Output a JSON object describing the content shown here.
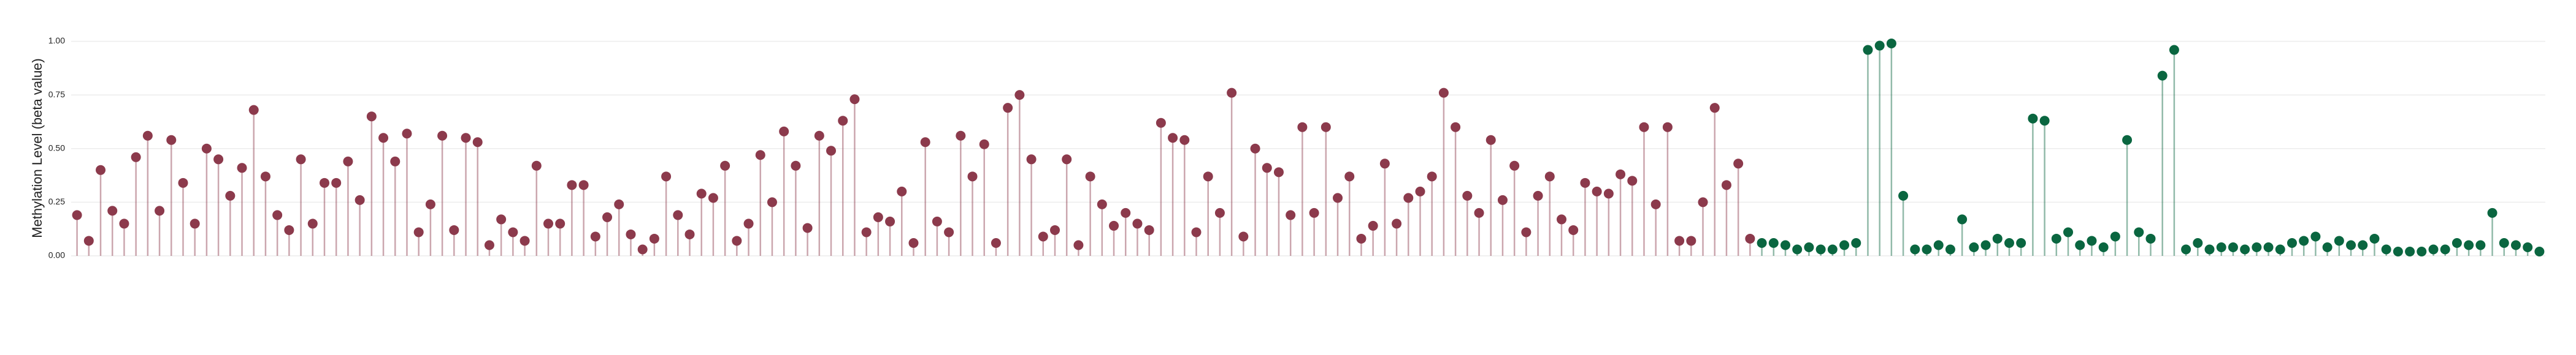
{
  "chart_data": {
    "type": "lollipop",
    "y_label": "Methylation Level (beta value)",
    "ylim": [
      0,
      1.05
    ],
    "yticks": [
      {
        "value": 0,
        "label": "0.00"
      },
      {
        "value": 0.25,
        "label": "0.25"
      },
      {
        "value": 0.5,
        "label": "0.50"
      },
      {
        "value": 0.75,
        "label": "0.75"
      },
      {
        "value": 1,
        "label": "1.00"
      }
    ],
    "grid": true,
    "categories": [
      null,
      null,
      null,
      null,
      null,
      null,
      null,
      null,
      null,
      null,
      null,
      null,
      null,
      null,
      null,
      null,
      null,
      null,
      null,
      null,
      null,
      null,
      null,
      null,
      null,
      null,
      null,
      null,
      null,
      null,
      null,
      null,
      null,
      null,
      null,
      null,
      null,
      null,
      null,
      null,
      null,
      null,
      null,
      null,
      null,
      null,
      null,
      null,
      null,
      null,
      null,
      null,
      null,
      null,
      null,
      null,
      null,
      null,
      null,
      null,
      null,
      null,
      null,
      null,
      null,
      null,
      null,
      null,
      null,
      null,
      null,
      null,
      null,
      null,
      null,
      null,
      null,
      null,
      null,
      null,
      null,
      null,
      null,
      null,
      null,
      null,
      null,
      null,
      null,
      null,
      null,
      null,
      null,
      null,
      null,
      null,
      null,
      null,
      null,
      null,
      null,
      null,
      null,
      null,
      null,
      null,
      null,
      null,
      null,
      null,
      null,
      null,
      null,
      null,
      null,
      null,
      null,
      null,
      null,
      null,
      null,
      null,
      null,
      null,
      null,
      null,
      null,
      null,
      null,
      null,
      null,
      null,
      null,
      null,
      null,
      null,
      null,
      null,
      null,
      null,
      null,
      null,
      null,
      null,
      null,
      null,
      null,
      null,
      null,
      null,
      null,
      null,
      null,
      null,
      null,
      null,
      null,
      null,
      null,
      null,
      null,
      null,
      null,
      null,
      null,
      null,
      null,
      null,
      null,
      null,
      null,
      null,
      null,
      null,
      null,
      null,
      null,
      null,
      null,
      null,
      null,
      null,
      null,
      null,
      null,
      null,
      null,
      null,
      null,
      null,
      null,
      null,
      null,
      null,
      null,
      null,
      null,
      null,
      null,
      null,
      null,
      null,
      null,
      null,
      null,
      null,
      null,
      null,
      null,
      null
    ],
    "series": [
      {
        "color": "#8c3a4c",
        "values": [
          0.19,
          0.07,
          0.4,
          0.21,
          0.15,
          0.46,
          0.56,
          0.21,
          0.54,
          0.34,
          0.15,
          0.5,
          0.45,
          0.28,
          0.41,
          0.68,
          0.37,
          0.19,
          0.12,
          0.45,
          0.15,
          0.34,
          0.34,
          0.44,
          0.26,
          0.65,
          0.55,
          0.44,
          0.57,
          0.11,
          0.24,
          0.56,
          0.12,
          0.55,
          0.53,
          0.05,
          0.17,
          0.11,
          0.07,
          0.42,
          0.15,
          0.15,
          0.33,
          0.33,
          0.09,
          0.18,
          0.24,
          0.1,
          0.03,
          0.08,
          0.37,
          0.19,
          0.1,
          0.29,
          0.27,
          0.42,
          0.07,
          0.15,
          0.47,
          0.25,
          0.58,
          0.42,
          0.13,
          0.56,
          0.49,
          0.63,
          0.73,
          0.11,
          0.18,
          0.16,
          0.3,
          0.06,
          0.53,
          0.16,
          0.11,
          0.56,
          0.37,
          0.52,
          0.06,
          0.69,
          0.75,
          0.45,
          0.09,
          0.12,
          0.45,
          0.05,
          0.37,
          0.24,
          0.14,
          0.2,
          0.15,
          0.12,
          0.62,
          0.55,
          0.54,
          0.11,
          0.37,
          0.2,
          0.76,
          0.09,
          0.5,
          0.41,
          0.39,
          0.19,
          0.6,
          0.2,
          0.6,
          0.27,
          0.37,
          0.08,
          0.14,
          0.43,
          0.15,
          0.27,
          0.3,
          0.37,
          0.76,
          0.6,
          0.28,
          0.2,
          0.54,
          0.26,
          0.42,
          0.11,
          0.28,
          0.37,
          0.17,
          0.12,
          0.34,
          0.3,
          0.29,
          0.38,
          0.35,
          0.6,
          0.24,
          0.6,
          0.07,
          0.07,
          0.25,
          0.69,
          0.33,
          0.43,
          0.08,
          null,
          null,
          null,
          null,
          null,
          null,
          null,
          null,
          null,
          null,
          null,
          null,
          null,
          null,
          null,
          null,
          null,
          null,
          null,
          null,
          null,
          null,
          null,
          null,
          null,
          null,
          null,
          null,
          null,
          null,
          null,
          null,
          null,
          null,
          null,
          null,
          null,
          null,
          null,
          null,
          null,
          null,
          null,
          null,
          null,
          null,
          null,
          null,
          null,
          null,
          null,
          null,
          null,
          null,
          null,
          null,
          null,
          null,
          null,
          null,
          null,
          null,
          null,
          null,
          null,
          null,
          null
        ]
      },
      {
        "color": "#0a6640",
        "values": [
          null,
          null,
          null,
          null,
          null,
          null,
          null,
          null,
          null,
          null,
          null,
          null,
          null,
          null,
          null,
          null,
          null,
          null,
          null,
          null,
          null,
          null,
          null,
          null,
          null,
          null,
          null,
          null,
          null,
          null,
          null,
          null,
          null,
          null,
          null,
          null,
          null,
          null,
          null,
          null,
          null,
          null,
          null,
          null,
          null,
          null,
          null,
          null,
          null,
          null,
          null,
          null,
          null,
          null,
          null,
          null,
          null,
          null,
          null,
          null,
          null,
          null,
          null,
          null,
          null,
          null,
          null,
          null,
          null,
          null,
          null,
          null,
          null,
          null,
          null,
          null,
          null,
          null,
          null,
          null,
          null,
          null,
          null,
          null,
          null,
          null,
          null,
          null,
          null,
          null,
          null,
          null,
          null,
          null,
          null,
          null,
          null,
          null,
          null,
          null,
          null,
          null,
          null,
          null,
          null,
          null,
          null,
          null,
          null,
          null,
          null,
          null,
          null,
          null,
          null,
          null,
          null,
          null,
          null,
          null,
          null,
          null,
          null,
          null,
          null,
          null,
          null,
          null,
          null,
          null,
          null,
          null,
          null,
          null,
          null,
          null,
          null,
          null,
          null,
          null,
          null,
          null,
          null,
          0.06,
          0.06,
          0.05,
          0.03,
          0.04,
          0.03,
          0.03,
          0.05,
          0.06,
          0.96,
          0.98,
          0.99,
          0.28,
          0.03,
          0.03,
          0.05,
          0.03,
          0.17,
          0.04,
          0.05,
          0.08,
          0.06,
          0.06,
          0.64,
          0.63,
          0.08,
          0.11,
          0.05,
          0.07,
          0.04,
          0.09,
          0.54,
          0.11,
          0.08,
          0.84,
          0.96,
          0.03,
          0.06,
          0.03,
          0.04,
          0.04,
          0.03,
          0.04,
          0.04,
          0.03,
          0.06,
          0.07,
          0.09,
          0.04,
          0.07,
          0.05,
          0.05,
          0.08,
          0.03,
          0.02,
          0.02,
          0.02,
          0.03,
          0.03,
          0.06,
          0.05,
          0.05,
          0.2,
          0.06,
          0.05,
          0.04,
          0.02
        ]
      }
    ]
  }
}
